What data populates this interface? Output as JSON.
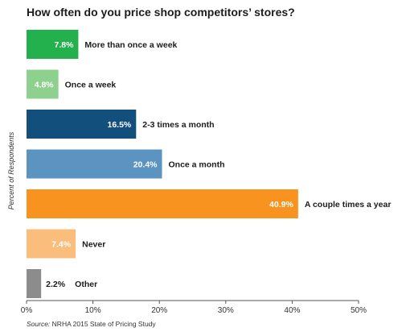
{
  "chart_data": {
    "type": "bar",
    "orientation": "horizontal",
    "title": "How often do you price shop competitors’ stores?",
    "ylabel": "Percent of Respondents",
    "xlabel": "",
    "xlim": [
      0,
      50
    ],
    "x_ticks": [
      "0%",
      "10%",
      "20%",
      "30%",
      "40%",
      "50%"
    ],
    "grid": false,
    "categories": [
      "More than once a week",
      "Once a week",
      "2-3 times a month",
      "Once a month",
      "A couple times a year",
      "Never",
      "Other"
    ],
    "values": [
      7.8,
      4.8,
      16.5,
      20.4,
      40.9,
      7.4,
      2.2
    ],
    "value_labels": [
      "7.8%",
      "4.8%",
      "16.5%",
      "20.4%",
      "40.9%",
      "7.4%",
      "2.2%"
    ],
    "colors": [
      "#22b14c",
      "#8ed08e",
      "#124f7d",
      "#5b94c0",
      "#f7931e",
      "#fbbd7c",
      "#8c8c8c"
    ],
    "source": {
      "label": "Source:",
      "text": "NRHA 2015 State of Pricing Study"
    }
  }
}
